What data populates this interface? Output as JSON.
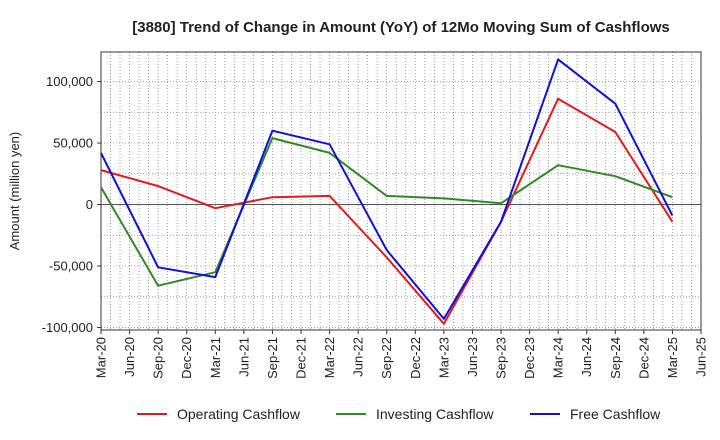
{
  "chart_data": {
    "type": "line",
    "title": "[3880]  Trend of Change in Amount (YoY) of 12Mo Moving Sum of Cashflows",
    "xlabel": "",
    "ylabel": "Amount (million yen)",
    "ylim": [
      -102000,
      124000
    ],
    "yticks": [
      100000,
      50000,
      0,
      -50000,
      -100000
    ],
    "ytick_labels": [
      "100,000",
      "50,000",
      "0",
      "-50,000",
      "-100,000"
    ],
    "categories": [
      "Mar-20",
      "Jun-20",
      "Sep-20",
      "Dec-20",
      "Mar-21",
      "Jun-21",
      "Sep-21",
      "Dec-21",
      "Mar-22",
      "Jun-22",
      "Sep-22",
      "Dec-22",
      "Mar-23",
      "Jun-23",
      "Sep-23",
      "Dec-23",
      "Mar-24",
      "Jun-24",
      "Sep-24",
      "Dec-24",
      "Mar-25",
      "Jun-25"
    ],
    "grid": true,
    "legend_position": "bottom",
    "series": [
      {
        "name": "Operating Cashflow",
        "color": "#e31a1c",
        "points": [
          [
            0,
            28000
          ],
          [
            2,
            15000
          ],
          [
            4,
            -3000
          ],
          [
            6,
            6000
          ],
          [
            8,
            7000
          ],
          [
            10,
            -43000
          ],
          [
            12,
            -97000
          ],
          [
            14,
            -14000
          ],
          [
            16,
            86000
          ],
          [
            18,
            59000
          ],
          [
            20,
            -14000
          ]
        ]
      },
      {
        "name": "Investing Cashflow",
        "color": "#2e8b22",
        "points": [
          [
            0,
            14000
          ],
          [
            2,
            -66000
          ],
          [
            4,
            -55000
          ],
          [
            6,
            54000
          ],
          [
            8,
            42000
          ],
          [
            10,
            7000
          ],
          [
            12,
            5000
          ],
          [
            14,
            1000
          ],
          [
            16,
            32000
          ],
          [
            18,
            23000
          ],
          [
            20,
            6000
          ]
        ]
      },
      {
        "name": "Free Cashflow",
        "color": "#1010d8",
        "points": [
          [
            0,
            42000
          ],
          [
            2,
            -51000
          ],
          [
            4,
            -59000
          ],
          [
            6,
            60000
          ],
          [
            8,
            49000
          ],
          [
            10,
            -37000
          ],
          [
            12,
            -93000
          ],
          [
            14,
            -14000
          ],
          [
            16,
            118000
          ],
          [
            18,
            82000
          ],
          [
            20,
            -9000
          ]
        ]
      }
    ]
  }
}
